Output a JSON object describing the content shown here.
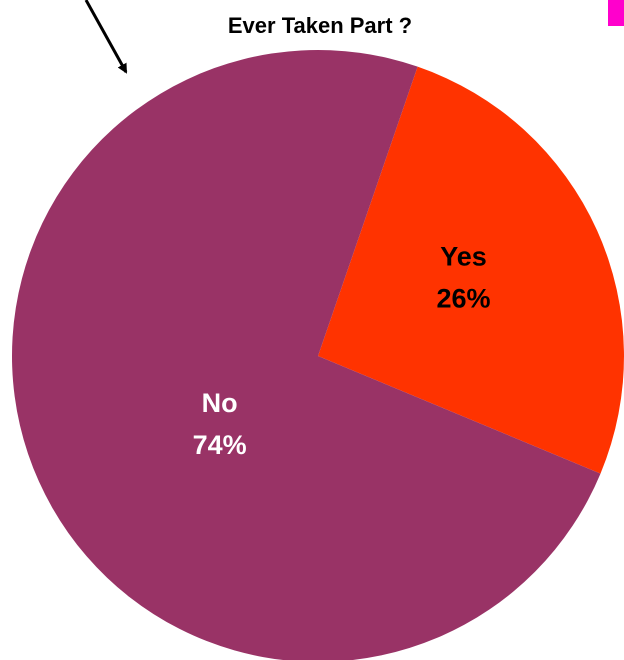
{
  "chart_data": {
    "type": "pie",
    "title": "Ever Taken Part ?",
    "slices": [
      {
        "label": "Yes",
        "value": 26,
        "value_label": "26%",
        "color": "#FF3300",
        "text_color": "#000000"
      },
      {
        "label": "No",
        "value": 74,
        "value_label": "74%",
        "color": "#993366",
        "text_color": "#FFFFFF"
      }
    ],
    "legend": "none",
    "accent_marker_color": "#FF00CC"
  }
}
